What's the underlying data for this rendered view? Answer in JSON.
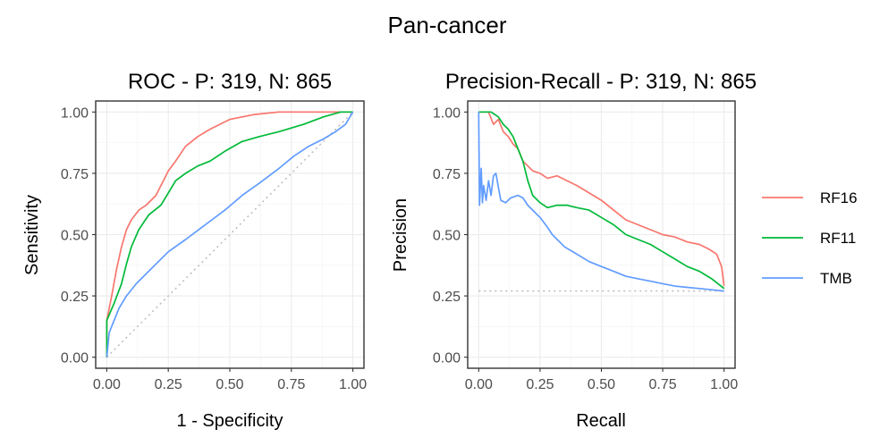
{
  "figure": {
    "title": "Pan-cancer"
  },
  "legend": {
    "position": "right",
    "entries": [
      {
        "name": "RF16",
        "color": "#F8766D"
      },
      {
        "name": "RF11",
        "color": "#00BA38"
      },
      {
        "name": "TMB",
        "color": "#619CFF"
      }
    ]
  },
  "chart_data": [
    {
      "type": "line",
      "title": "ROC - P: 319, N: 865",
      "xlabel": "1 - Specificity",
      "ylabel": "Sensitivity",
      "xlim": [
        0,
        1
      ],
      "ylim": [
        0,
        1
      ],
      "x_ticks": [
        "0.00",
        "0.25",
        "0.50",
        "0.75",
        "1.00"
      ],
      "y_ticks": [
        "0.00",
        "0.25",
        "0.50",
        "0.75",
        "1.00"
      ],
      "grid": true,
      "reference_line": {
        "style": "dotted",
        "points": [
          [
            0,
            0
          ],
          [
            1,
            1
          ]
        ]
      },
      "series": [
        {
          "name": "RF16",
          "color": "#F8766D",
          "points": [
            [
              0,
              0
            ],
            [
              0,
              0.15
            ],
            [
              0.02,
              0.25
            ],
            [
              0.04,
              0.36
            ],
            [
              0.06,
              0.45
            ],
            [
              0.08,
              0.52
            ],
            [
              0.1,
              0.56
            ],
            [
              0.13,
              0.6
            ],
            [
              0.16,
              0.62
            ],
            [
              0.2,
              0.66
            ],
            [
              0.23,
              0.72
            ],
            [
              0.25,
              0.76
            ],
            [
              0.28,
              0.8
            ],
            [
              0.32,
              0.86
            ],
            [
              0.37,
              0.9
            ],
            [
              0.42,
              0.93
            ],
            [
              0.5,
              0.97
            ],
            [
              0.6,
              0.99
            ],
            [
              0.7,
              1.0
            ],
            [
              0.85,
              1.0
            ],
            [
              1.0,
              1.0
            ]
          ]
        },
        {
          "name": "RF11",
          "color": "#00BA38",
          "points": [
            [
              0,
              0
            ],
            [
              0,
              0.15
            ],
            [
              0.03,
              0.22
            ],
            [
              0.06,
              0.3
            ],
            [
              0.08,
              0.38
            ],
            [
              0.1,
              0.45
            ],
            [
              0.13,
              0.52
            ],
            [
              0.17,
              0.58
            ],
            [
              0.22,
              0.62
            ],
            [
              0.25,
              0.67
            ],
            [
              0.28,
              0.72
            ],
            [
              0.32,
              0.75
            ],
            [
              0.37,
              0.78
            ],
            [
              0.42,
              0.8
            ],
            [
              0.48,
              0.84
            ],
            [
              0.55,
              0.88
            ],
            [
              0.62,
              0.9
            ],
            [
              0.7,
              0.92
            ],
            [
              0.8,
              0.95
            ],
            [
              0.88,
              0.98
            ],
            [
              0.95,
              1.0
            ],
            [
              1.0,
              1.0
            ]
          ]
        },
        {
          "name": "TMB",
          "color": "#619CFF",
          "points": [
            [
              0,
              0
            ],
            [
              0.01,
              0.1
            ],
            [
              0.03,
              0.15
            ],
            [
              0.05,
              0.2
            ],
            [
              0.08,
              0.25
            ],
            [
              0.12,
              0.3
            ],
            [
              0.18,
              0.36
            ],
            [
              0.25,
              0.43
            ],
            [
              0.32,
              0.48
            ],
            [
              0.4,
              0.54
            ],
            [
              0.48,
              0.6
            ],
            [
              0.55,
              0.66
            ],
            [
              0.62,
              0.71
            ],
            [
              0.7,
              0.77
            ],
            [
              0.76,
              0.82
            ],
            [
              0.82,
              0.86
            ],
            [
              0.88,
              0.89
            ],
            [
              0.93,
              0.92
            ],
            [
              0.97,
              0.95
            ],
            [
              1.0,
              1.0
            ]
          ]
        }
      ]
    },
    {
      "type": "line",
      "title": "Precision-Recall - P: 319, N: 865",
      "xlabel": "Recall",
      "ylabel": "Precision",
      "xlim": [
        0,
        1
      ],
      "ylim": [
        0,
        1
      ],
      "x_ticks": [
        "0.00",
        "0.25",
        "0.50",
        "0.75",
        "1.00"
      ],
      "y_ticks": [
        "0.00",
        "0.25",
        "0.50",
        "0.75",
        "1.00"
      ],
      "grid": true,
      "reference_line": {
        "style": "dotted",
        "points": [
          [
            0,
            0.27
          ],
          [
            1,
            0.27
          ]
        ]
      },
      "series": [
        {
          "name": "RF16",
          "color": "#F8766D",
          "points": [
            [
              0,
              1.0
            ],
            [
              0.02,
              1.0
            ],
            [
              0.04,
              1.0
            ],
            [
              0.06,
              0.95
            ],
            [
              0.08,
              0.97
            ],
            [
              0.1,
              0.92
            ],
            [
              0.12,
              0.9
            ],
            [
              0.14,
              0.87
            ],
            [
              0.16,
              0.85
            ],
            [
              0.18,
              0.8
            ],
            [
              0.2,
              0.78
            ],
            [
              0.22,
              0.76
            ],
            [
              0.25,
              0.75
            ],
            [
              0.28,
              0.73
            ],
            [
              0.32,
              0.74
            ],
            [
              0.36,
              0.72
            ],
            [
              0.4,
              0.7
            ],
            [
              0.45,
              0.67
            ],
            [
              0.5,
              0.64
            ],
            [
              0.55,
              0.6
            ],
            [
              0.6,
              0.56
            ],
            [
              0.65,
              0.54
            ],
            [
              0.7,
              0.52
            ],
            [
              0.75,
              0.5
            ],
            [
              0.8,
              0.49
            ],
            [
              0.85,
              0.47
            ],
            [
              0.9,
              0.46
            ],
            [
              0.94,
              0.44
            ],
            [
              0.97,
              0.42
            ],
            [
              0.99,
              0.37
            ],
            [
              1.0,
              0.29
            ]
          ]
        },
        {
          "name": "RF11",
          "color": "#00BA38",
          "points": [
            [
              0,
              1.0
            ],
            [
              0.05,
              1.0
            ],
            [
              0.08,
              0.98
            ],
            [
              0.1,
              0.95
            ],
            [
              0.12,
              0.93
            ],
            [
              0.14,
              0.9
            ],
            [
              0.16,
              0.85
            ],
            [
              0.18,
              0.8
            ],
            [
              0.2,
              0.72
            ],
            [
              0.22,
              0.66
            ],
            [
              0.25,
              0.63
            ],
            [
              0.28,
              0.61
            ],
            [
              0.32,
              0.62
            ],
            [
              0.36,
              0.62
            ],
            [
              0.4,
              0.61
            ],
            [
              0.45,
              0.6
            ],
            [
              0.5,
              0.57
            ],
            [
              0.55,
              0.54
            ],
            [
              0.6,
              0.5
            ],
            [
              0.65,
              0.48
            ],
            [
              0.7,
              0.46
            ],
            [
              0.75,
              0.43
            ],
            [
              0.8,
              0.4
            ],
            [
              0.85,
              0.37
            ],
            [
              0.9,
              0.35
            ],
            [
              0.95,
              0.32
            ],
            [
              1.0,
              0.28
            ]
          ]
        },
        {
          "name": "TMB",
          "color": "#619CFF",
          "points": [
            [
              0,
              1.0
            ],
            [
              0.003,
              0.62
            ],
            [
              0.01,
              0.77
            ],
            [
              0.015,
              0.63
            ],
            [
              0.02,
              0.7
            ],
            [
              0.03,
              0.64
            ],
            [
              0.04,
              0.72
            ],
            [
              0.05,
              0.66
            ],
            [
              0.06,
              0.74
            ],
            [
              0.07,
              0.75
            ],
            [
              0.09,
              0.64
            ],
            [
              0.11,
              0.63
            ],
            [
              0.13,
              0.65
            ],
            [
              0.16,
              0.66
            ],
            [
              0.18,
              0.65
            ],
            [
              0.2,
              0.62
            ],
            [
              0.22,
              0.6
            ],
            [
              0.25,
              0.57
            ],
            [
              0.28,
              0.53
            ],
            [
              0.3,
              0.5
            ],
            [
              0.35,
              0.45
            ],
            [
              0.4,
              0.42
            ],
            [
              0.45,
              0.39
            ],
            [
              0.5,
              0.37
            ],
            [
              0.55,
              0.35
            ],
            [
              0.6,
              0.33
            ],
            [
              0.65,
              0.32
            ],
            [
              0.7,
              0.31
            ],
            [
              0.75,
              0.3
            ],
            [
              0.8,
              0.29
            ],
            [
              0.85,
              0.285
            ],
            [
              0.9,
              0.28
            ],
            [
              0.95,
              0.275
            ],
            [
              1.0,
              0.27
            ]
          ]
        }
      ]
    }
  ]
}
